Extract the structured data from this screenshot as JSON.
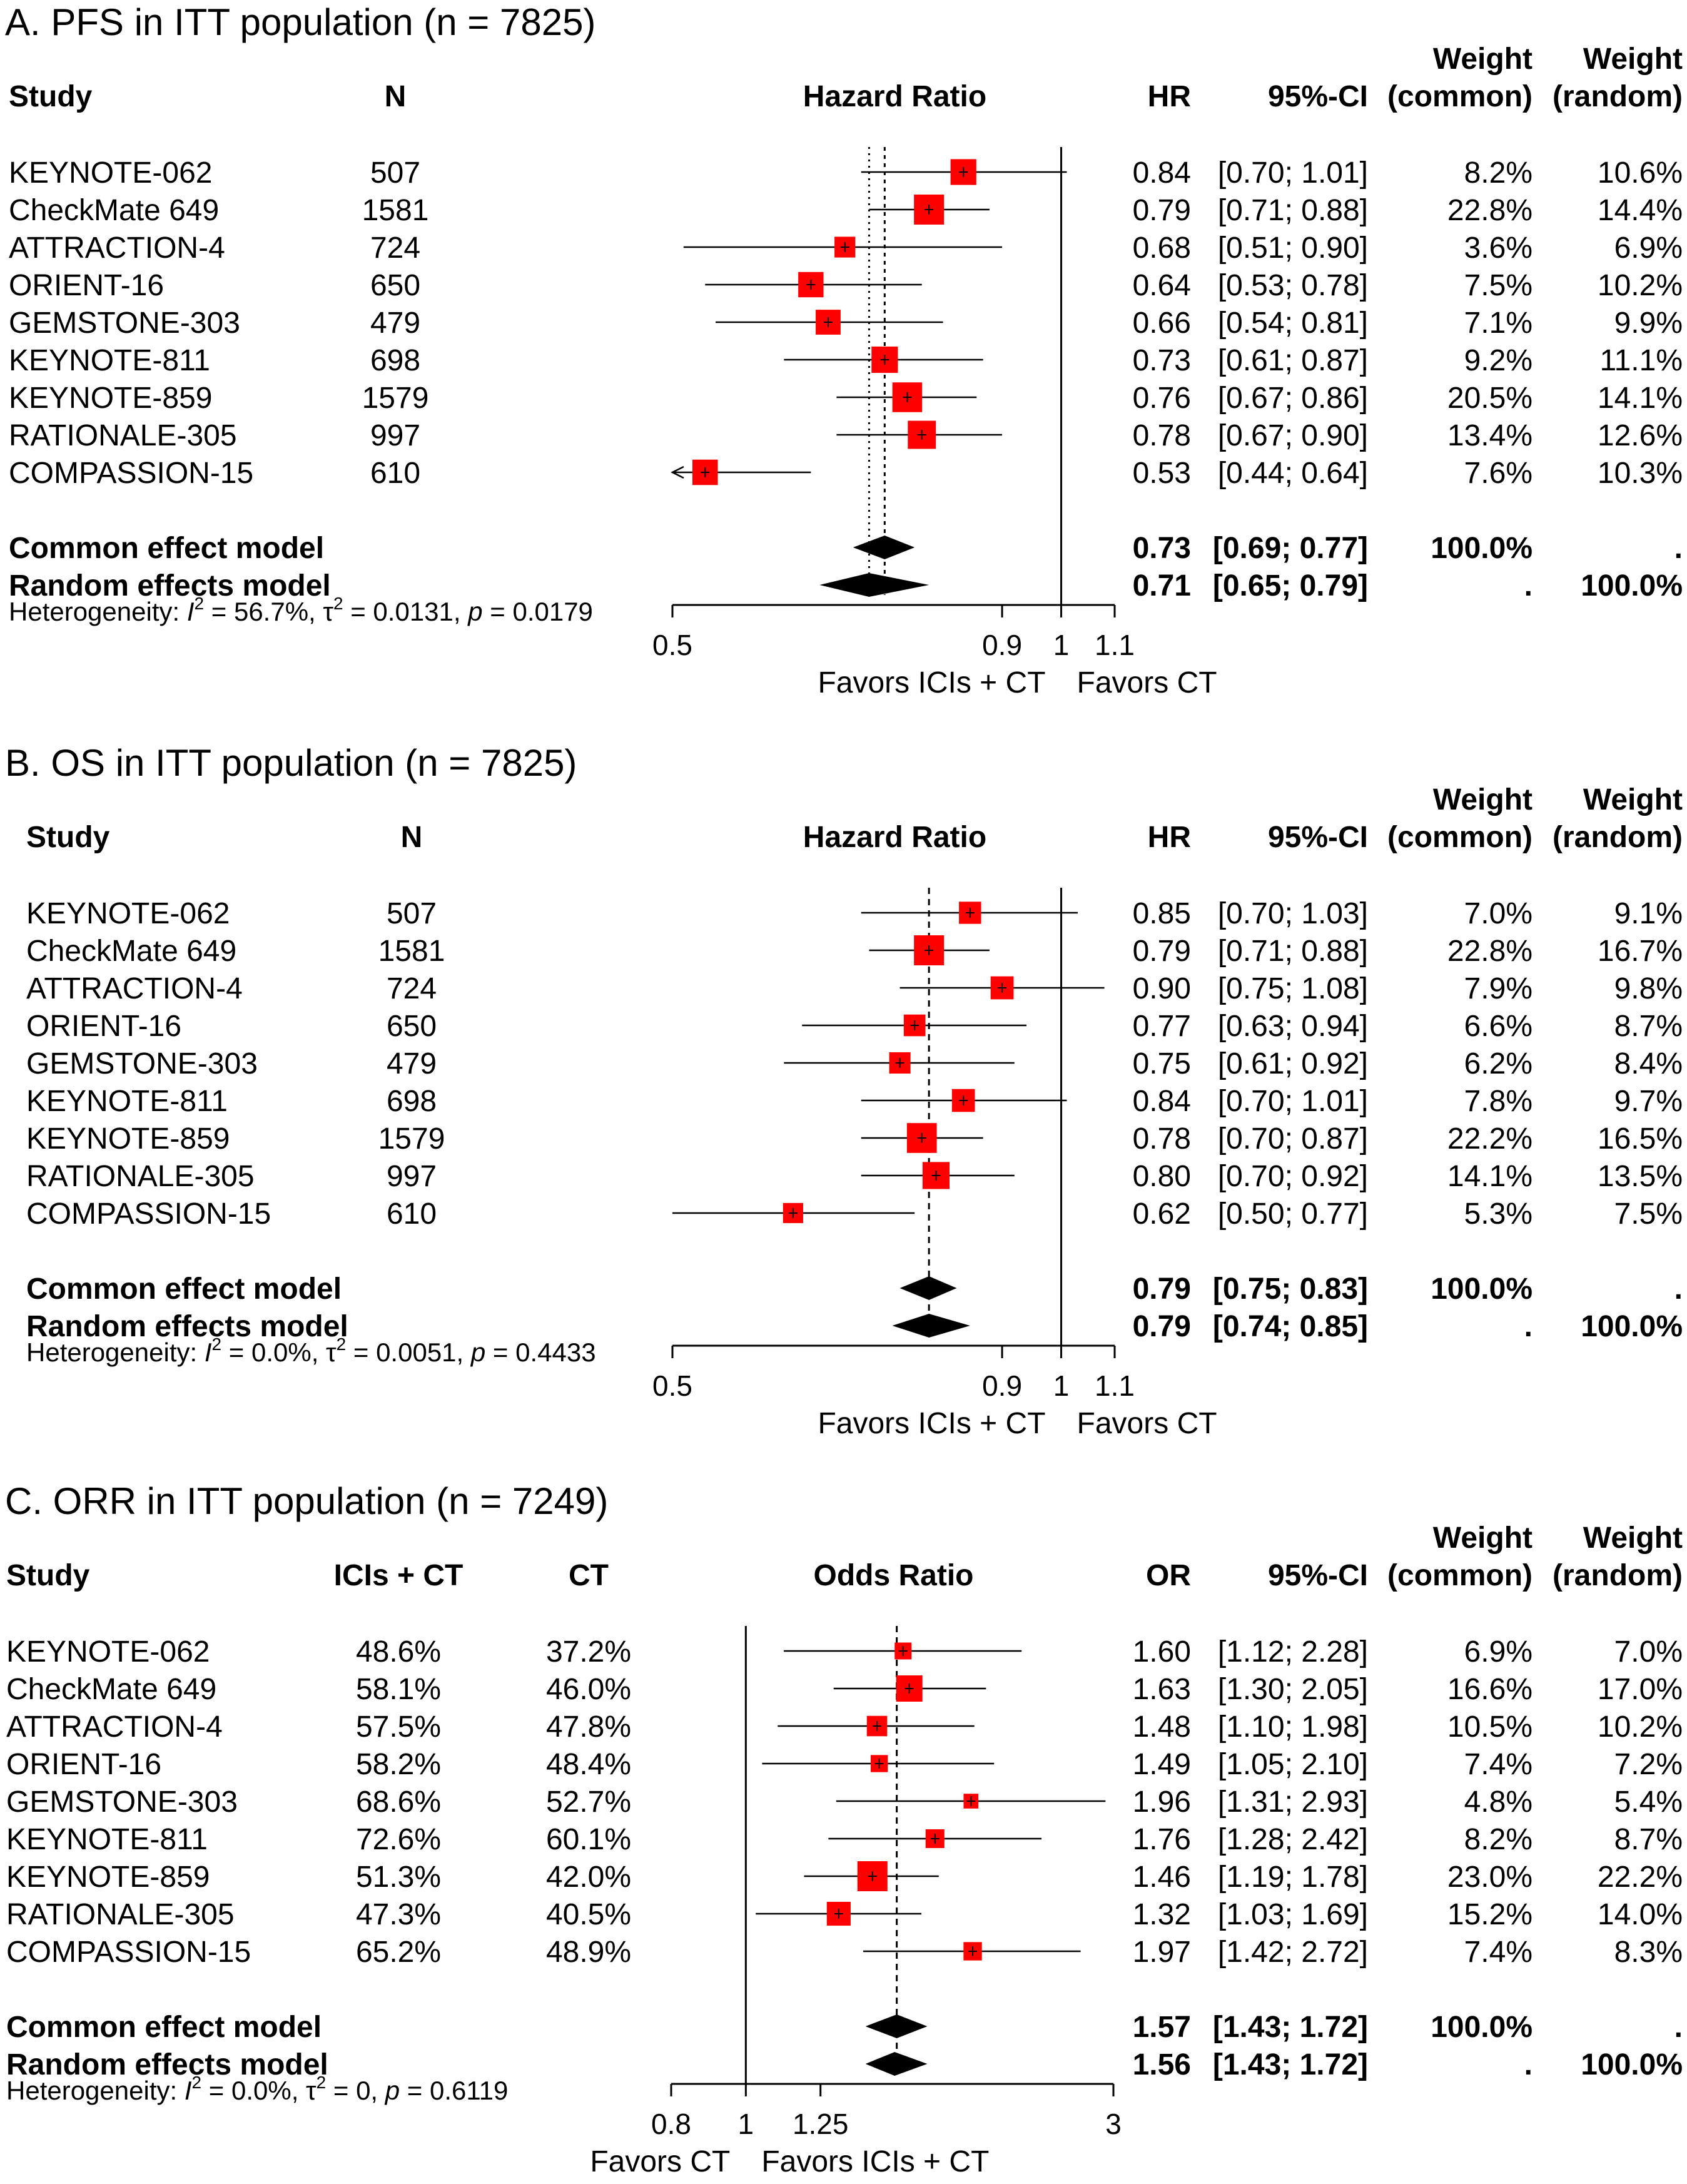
{
  "chart_data": [
    {
      "type": "forest",
      "title": "A. PFS in ITT population (n = 7825)",
      "measure": "Hazard Ratio",
      "effect_label": "HR",
      "ci_label": "95%-CI",
      "weight_common_label": [
        "Weight",
        "(common)"
      ],
      "weight_random_label": [
        "Weight",
        "(random)"
      ],
      "study_label": "Study",
      "extra_columns": [
        {
          "label": "N",
          "values": [
            "507",
            "1581",
            "724",
            "650",
            "479",
            "698",
            "1579",
            "997",
            "610"
          ]
        }
      ],
      "studies": [
        {
          "name": "KEYNOTE-062",
          "est": 0.84,
          "lo": 0.7,
          "hi": 1.01,
          "est_text": "0.84",
          "ci_text": "[0.70; 1.01]",
          "w_common": "8.2%",
          "w_random": "10.6%"
        },
        {
          "name": "CheckMate 649",
          "est": 0.79,
          "lo": 0.71,
          "hi": 0.88,
          "est_text": "0.79",
          "ci_text": "[0.71; 0.88]",
          "w_common": "22.8%",
          "w_random": "14.4%"
        },
        {
          "name": "ATTRACTION-4",
          "est": 0.68,
          "lo": 0.51,
          "hi": 0.9,
          "est_text": "0.68",
          "ci_text": "[0.51; 0.90]",
          "w_common": "3.6%",
          "w_random": "6.9%"
        },
        {
          "name": "ORIENT-16",
          "est": 0.64,
          "lo": 0.53,
          "hi": 0.78,
          "est_text": "0.64",
          "ci_text": "[0.53; 0.78]",
          "w_common": "7.5%",
          "w_random": "10.2%"
        },
        {
          "name": "GEMSTONE-303",
          "est": 0.66,
          "lo": 0.54,
          "hi": 0.81,
          "est_text": "0.66",
          "ci_text": "[0.54; 0.81]",
          "w_common": "7.1%",
          "w_random": "9.9%"
        },
        {
          "name": "KEYNOTE-811",
          "est": 0.73,
          "lo": 0.61,
          "hi": 0.87,
          "est_text": "0.73",
          "ci_text": "[0.61; 0.87]",
          "w_common": "9.2%",
          "w_random": "11.1%"
        },
        {
          "name": "KEYNOTE-859",
          "est": 0.76,
          "lo": 0.67,
          "hi": 0.86,
          "est_text": "0.76",
          "ci_text": "[0.67; 0.86]",
          "w_common": "20.5%",
          "w_random": "14.1%"
        },
        {
          "name": "RATIONALE-305",
          "est": 0.78,
          "lo": 0.67,
          "hi": 0.9,
          "est_text": "0.78",
          "ci_text": "[0.67; 0.90]",
          "w_common": "13.4%",
          "w_random": "12.6%"
        },
        {
          "name": "COMPASSION-15",
          "est": 0.53,
          "lo": 0.44,
          "hi": 0.64,
          "est_text": "0.53",
          "ci_text": "[0.44; 0.64]",
          "w_common": "7.6%",
          "w_random": "10.3%"
        }
      ],
      "pooled": [
        {
          "name": "Common effect model",
          "est": 0.73,
          "lo": 0.69,
          "hi": 0.77,
          "est_text": "0.73",
          "ci_text": "[0.69; 0.77]",
          "w_common": "100.0%",
          "w_random": "."
        },
        {
          "name": "Random effects model",
          "est": 0.71,
          "lo": 0.65,
          "hi": 0.79,
          "est_text": "0.71",
          "ci_text": "[0.65; 0.79]",
          "w_common": ".",
          "w_random": "100.0%"
        }
      ],
      "heterogeneity": {
        "i2": "56.7%",
        "tau2": "0.0131",
        "p": "0.0179"
      },
      "axis": {
        "min": 0.5,
        "max": 1.1,
        "scale": "log",
        "ticks": [
          "0.5",
          "0.9",
          "1",
          "1.1"
        ],
        "null_value": 1
      },
      "favors_left": "Favors ICIs + CT",
      "favors_right": "Favors CT"
    },
    {
      "type": "forest",
      "title": "B. OS in ITT population (n = 7825)",
      "measure": "Hazard Ratio",
      "effect_label": "HR",
      "ci_label": "95%-CI",
      "weight_common_label": [
        "Weight",
        "(common)"
      ],
      "weight_random_label": [
        "Weight",
        "(random)"
      ],
      "study_label": "Study",
      "extra_columns": [
        {
          "label": "N",
          "values": [
            "507",
            "1581",
            "724",
            "650",
            "479",
            "698",
            "1579",
            "997",
            "610"
          ]
        }
      ],
      "studies": [
        {
          "name": "KEYNOTE-062",
          "est": 0.85,
          "lo": 0.7,
          "hi": 1.03,
          "est_text": "0.85",
          "ci_text": "[0.70; 1.03]",
          "w_common": "7.0%",
          "w_random": "9.1%"
        },
        {
          "name": "CheckMate 649",
          "est": 0.79,
          "lo": 0.71,
          "hi": 0.88,
          "est_text": "0.79",
          "ci_text": "[0.71; 0.88]",
          "w_common": "22.8%",
          "w_random": "16.7%"
        },
        {
          "name": "ATTRACTION-4",
          "est": 0.9,
          "lo": 0.75,
          "hi": 1.08,
          "est_text": "0.90",
          "ci_text": "[0.75; 1.08]",
          "w_common": "7.9%",
          "w_random": "9.8%"
        },
        {
          "name": "ORIENT-16",
          "est": 0.77,
          "lo": 0.63,
          "hi": 0.94,
          "est_text": "0.77",
          "ci_text": "[0.63; 0.94]",
          "w_common": "6.6%",
          "w_random": "8.7%"
        },
        {
          "name": "GEMSTONE-303",
          "est": 0.75,
          "lo": 0.61,
          "hi": 0.92,
          "est_text": "0.75",
          "ci_text": "[0.61; 0.92]",
          "w_common": "6.2%",
          "w_random": "8.4%"
        },
        {
          "name": "KEYNOTE-811",
          "est": 0.84,
          "lo": 0.7,
          "hi": 1.01,
          "est_text": "0.84",
          "ci_text": "[0.70; 1.01]",
          "w_common": "7.8%",
          "w_random": "9.7%"
        },
        {
          "name": "KEYNOTE-859",
          "est": 0.78,
          "lo": 0.7,
          "hi": 0.87,
          "est_text": "0.78",
          "ci_text": "[0.70; 0.87]",
          "w_common": "22.2%",
          "w_random": "16.5%"
        },
        {
          "name": "RATIONALE-305",
          "est": 0.8,
          "lo": 0.7,
          "hi": 0.92,
          "est_text": "0.80",
          "ci_text": "[0.70; 0.92]",
          "w_common": "14.1%",
          "w_random": "13.5%"
        },
        {
          "name": "COMPASSION-15",
          "est": 0.62,
          "lo": 0.5,
          "hi": 0.77,
          "est_text": "0.62",
          "ci_text": "[0.50; 0.77]",
          "w_common": "5.3%",
          "w_random": "7.5%"
        }
      ],
      "pooled": [
        {
          "name": "Common effect model",
          "est": 0.79,
          "lo": 0.75,
          "hi": 0.83,
          "est_text": "0.79",
          "ci_text": "[0.75; 0.83]",
          "w_common": "100.0%",
          "w_random": "."
        },
        {
          "name": "Random effects model",
          "est": 0.79,
          "lo": 0.74,
          "hi": 0.85,
          "est_text": "0.79",
          "ci_text": "[0.74; 0.85]",
          "w_common": ".",
          "w_random": "100.0%"
        }
      ],
      "heterogeneity": {
        "i2": "0.0%",
        "tau2": "0.0051",
        "p": "0.4433"
      },
      "axis": {
        "min": 0.5,
        "max": 1.1,
        "scale": "log",
        "ticks": [
          "0.5",
          "0.9",
          "1",
          "1.1"
        ],
        "null_value": 1
      },
      "favors_left": "Favors ICIs + CT",
      "favors_right": "Favors CT"
    },
    {
      "type": "forest",
      "title": "C. ORR in ITT population (n = 7249)",
      "measure": "Odds Ratio",
      "effect_label": "OR",
      "ci_label": "95%-CI",
      "weight_common_label": [
        "Weight",
        "(common)"
      ],
      "weight_random_label": [
        "Weight",
        "(random)"
      ],
      "study_label": "Study",
      "extra_columns": [
        {
          "label": "ICIs + CT",
          "values": [
            "48.6%",
            "58.1%",
            "57.5%",
            "58.2%",
            "68.6%",
            "72.6%",
            "51.3%",
            "47.3%",
            "65.2%"
          ]
        },
        {
          "label": "CT",
          "values": [
            "37.2%",
            "46.0%",
            "47.8%",
            "48.4%",
            "52.7%",
            "60.1%",
            "42.0%",
            "40.5%",
            "48.9%"
          ]
        }
      ],
      "studies": [
        {
          "name": "KEYNOTE-062",
          "est": 1.6,
          "lo": 1.12,
          "hi": 2.28,
          "est_text": "1.60",
          "ci_text": "[1.12; 2.28]",
          "w_common": "6.9%",
          "w_random": "7.0%"
        },
        {
          "name": "CheckMate 649",
          "est": 1.63,
          "lo": 1.3,
          "hi": 2.05,
          "est_text": "1.63",
          "ci_text": "[1.30; 2.05]",
          "w_common": "16.6%",
          "w_random": "17.0%"
        },
        {
          "name": "ATTRACTION-4",
          "est": 1.48,
          "lo": 1.1,
          "hi": 1.98,
          "est_text": "1.48",
          "ci_text": "[1.10; 1.98]",
          "w_common": "10.5%",
          "w_random": "10.2%"
        },
        {
          "name": "ORIENT-16",
          "est": 1.49,
          "lo": 1.05,
          "hi": 2.1,
          "est_text": "1.49",
          "ci_text": "[1.05; 2.10]",
          "w_common": "7.4%",
          "w_random": "7.2%"
        },
        {
          "name": "GEMSTONE-303",
          "est": 1.96,
          "lo": 1.31,
          "hi": 2.93,
          "est_text": "1.96",
          "ci_text": "[1.31; 2.93]",
          "w_common": "4.8%",
          "w_random": "5.4%"
        },
        {
          "name": "KEYNOTE-811",
          "est": 1.76,
          "lo": 1.28,
          "hi": 2.42,
          "est_text": "1.76",
          "ci_text": "[1.28; 2.42]",
          "w_common": "8.2%",
          "w_random": "8.7%"
        },
        {
          "name": "KEYNOTE-859",
          "est": 1.46,
          "lo": 1.19,
          "hi": 1.78,
          "est_text": "1.46",
          "ci_text": "[1.19; 1.78]",
          "w_common": "23.0%",
          "w_random": "22.2%"
        },
        {
          "name": "RATIONALE-305",
          "est": 1.32,
          "lo": 1.03,
          "hi": 1.69,
          "est_text": "1.32",
          "ci_text": "[1.03; 1.69]",
          "w_common": "15.2%",
          "w_random": "14.0%"
        },
        {
          "name": "COMPASSION-15",
          "est": 1.97,
          "lo": 1.42,
          "hi": 2.72,
          "est_text": "1.97",
          "ci_text": "[1.42; 2.72]",
          "w_common": "7.4%",
          "w_random": "8.3%"
        }
      ],
      "pooled": [
        {
          "name": "Common effect model",
          "est": 1.57,
          "lo": 1.43,
          "hi": 1.72,
          "est_text": "1.57",
          "ci_text": "[1.43; 1.72]",
          "w_common": "100.0%",
          "w_random": "."
        },
        {
          "name": "Random effects model",
          "est": 1.56,
          "lo": 1.43,
          "hi": 1.72,
          "est_text": "1.56",
          "ci_text": "[1.43; 1.72]",
          "w_common": ".",
          "w_random": "100.0%"
        }
      ],
      "heterogeneity": {
        "i2": "0.0%",
        "tau2": "0",
        "p": "0.6119"
      },
      "axis": {
        "min": 0.8,
        "max": 3,
        "scale": "log",
        "ticks": [
          "0.8",
          "1",
          "1.25",
          "3"
        ],
        "null_value": 1
      },
      "favors_left": "Favors CT",
      "favors_right": "Favors ICIs + CT"
    }
  ],
  "colors": {
    "box": "#ff0000",
    "line": "#000000",
    "diamond": "#000000",
    "background": "#ffffff"
  }
}
